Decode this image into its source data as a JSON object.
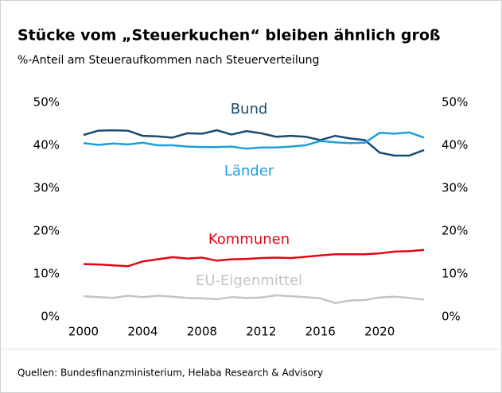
{
  "chart_data": {
    "type": "line",
    "title": "Stücke vom „Steuerkuchen“ bleiben ähnlich groß",
    "subtitle": "%-Anteil am Steueraufkommen nach Steuerverteilung",
    "source": "Quellen: Bundesfinanzministerium, Helaba Research & Advisory",
    "x": [
      2000,
      2001,
      2002,
      2003,
      2004,
      2005,
      2006,
      2007,
      2008,
      2009,
      2010,
      2011,
      2012,
      2013,
      2014,
      2015,
      2016,
      2017,
      2018,
      2019,
      2020,
      2021,
      2022,
      2023
    ],
    "xlim": [
      2000,
      2023
    ],
    "xticks": [
      2000,
      2004,
      2008,
      2012,
      2016,
      2020
    ],
    "ylim": [
      0,
      50
    ],
    "yticks": [
      {
        "value": 0,
        "label": "0%"
      },
      {
        "value": 10,
        "label": "10%"
      },
      {
        "value": 20,
        "label": "20%"
      },
      {
        "value": 30,
        "label": "30%"
      },
      {
        "value": 40,
        "label": "40%"
      },
      {
        "value": 50,
        "label": "50%"
      }
    ],
    "y2lim": [
      0,
      50
    ],
    "y2ticks": [
      {
        "value": 0,
        "label": "0%"
      },
      {
        "value": 10,
        "label": "10%"
      },
      {
        "value": 20,
        "label": "20%"
      },
      {
        "value": 30,
        "label": "30%"
      },
      {
        "value": 40,
        "label": "40%"
      },
      {
        "value": 50,
        "label": "50%"
      }
    ],
    "series": [
      {
        "name": "Bund",
        "color": "#1b4a6f",
        "values": [
          42.4,
          43.4,
          43.5,
          43.4,
          42.2,
          42.1,
          41.8,
          42.8,
          42.7,
          43.5,
          42.5,
          43.3,
          42.8,
          42.0,
          42.2,
          42.0,
          41.2,
          42.2,
          41.6,
          41.2,
          38.3,
          37.6,
          37.6,
          38.9
        ]
      },
      {
        "name": "Länder",
        "color": "#1ba0db",
        "values": [
          40.5,
          40.1,
          40.4,
          40.2,
          40.6,
          40.0,
          40.0,
          39.7,
          39.6,
          39.6,
          39.7,
          39.2,
          39.5,
          39.5,
          39.7,
          40.0,
          41.0,
          40.7,
          40.5,
          40.6,
          42.9,
          42.7,
          43.0,
          41.8
        ]
      },
      {
        "name": "Kommunen",
        "color": "#e30613",
        "values": [
          12.3,
          12.2,
          12.0,
          11.8,
          12.9,
          13.4,
          13.9,
          13.6,
          13.8,
          13.1,
          13.4,
          13.5,
          13.7,
          13.8,
          13.7,
          14.0,
          14.3,
          14.6,
          14.6,
          14.6,
          14.8,
          15.2,
          15.3,
          15.6
        ]
      },
      {
        "name": "EU-Eigenmittel",
        "color": "#c4c4c4",
        "values": [
          4.8,
          4.6,
          4.4,
          4.9,
          4.6,
          4.9,
          4.7,
          4.4,
          4.3,
          4.1,
          4.6,
          4.4,
          4.5,
          5.0,
          4.8,
          4.6,
          4.3,
          3.2,
          3.8,
          3.9,
          4.5,
          4.7,
          4.4,
          4.0
        ]
      }
    ]
  }
}
